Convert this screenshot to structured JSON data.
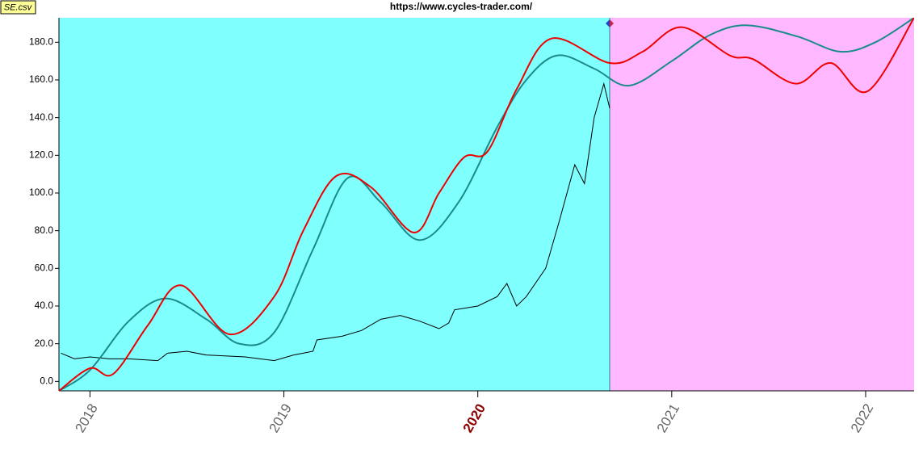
{
  "chart_data": {
    "type": "line",
    "title": "https://www.cycles-trader.com/",
    "file_label": "SE.csv",
    "xlim": [
      2017.84,
      2022.25
    ],
    "ylim": [
      -5,
      193
    ],
    "xticks": [
      2018,
      2019,
      2020,
      2021,
      2022
    ],
    "highlighted_xtick": 2020,
    "yticks": [
      {
        "value": 0,
        "label": "0.0"
      },
      {
        "value": 20,
        "label": "20.0"
      },
      {
        "value": 40,
        "label": "40.0"
      },
      {
        "value": 60,
        "label": "60.0"
      },
      {
        "value": 80,
        "label": "80.0"
      },
      {
        "value": 100,
        "label": "100.0"
      },
      {
        "value": 120,
        "label": "120.0"
      },
      {
        "value": 140,
        "label": "140.0"
      },
      {
        "value": 160,
        "label": "160.0"
      },
      {
        "value": 180,
        "label": "180.0"
      }
    ],
    "divider_x": 2020.68,
    "past_color": "#80ffff",
    "future_color": "#ffb8ff",
    "series": [
      {
        "color": "#1a8a8a",
        "smooth": true,
        "x": [
          2017.84,
          2018.0,
          2018.2,
          2018.39,
          2018.6,
          2018.77,
          2018.95,
          2019.15,
          2019.33,
          2019.5,
          2019.7,
          2019.9,
          2020.1,
          2020.25,
          2020.41,
          2020.6,
          2020.78,
          2021.0,
          2021.2,
          2021.39,
          2021.65,
          2021.87,
          2022.05,
          2022.25
        ],
        "values": [
          -5,
          6,
          32,
          44,
          33,
          20,
          26,
          70,
          108,
          95,
          75,
          95,
          135,
          160,
          173,
          166,
          157,
          170,
          184,
          189,
          183,
          175,
          180,
          193
        ]
      },
      {
        "color": "#ee0000",
        "smooth": true,
        "x": [
          2017.84,
          2018.0,
          2018.12,
          2018.3,
          2018.47,
          2018.72,
          2018.95,
          2019.1,
          2019.27,
          2019.45,
          2019.67,
          2019.8,
          2019.93,
          2020.05,
          2020.2,
          2020.38,
          2020.68,
          2020.85,
          2021.05,
          2021.3,
          2021.42,
          2021.64,
          2021.82,
          2022.01,
          2022.25
        ],
        "values": [
          -5,
          7,
          4,
          30,
          51,
          25,
          45,
          80,
          109,
          103,
          79,
          100,
          119,
          122,
          155,
          182,
          169,
          175,
          188,
          173,
          171,
          158,
          169,
          154,
          193
        ]
      },
      {
        "color": "#000000",
        "smooth": false,
        "x": [
          2017.85,
          2017.92,
          2018.0,
          2018.1,
          2018.2,
          2018.35,
          2018.4,
          2018.5,
          2018.6,
          2018.8,
          2018.95,
          2019.05,
          2019.15,
          2019.17,
          2019.3,
          2019.4,
          2019.5,
          2019.6,
          2019.7,
          2019.8,
          2019.85,
          2019.88,
          2020.0,
          2020.1,
          2020.15,
          2020.2,
          2020.25,
          2020.35,
          2020.42,
          2020.5,
          2020.55,
          2020.6,
          2020.65,
          2020.68
        ],
        "values": [
          15,
          12,
          13,
          12,
          12,
          11,
          15,
          16,
          14,
          13,
          11,
          14,
          16,
          22,
          24,
          27,
          33,
          35,
          32,
          28,
          31,
          38,
          40,
          45,
          52,
          40,
          45,
          60,
          85,
          115,
          105,
          140,
          158,
          145
        ]
      }
    ]
  }
}
